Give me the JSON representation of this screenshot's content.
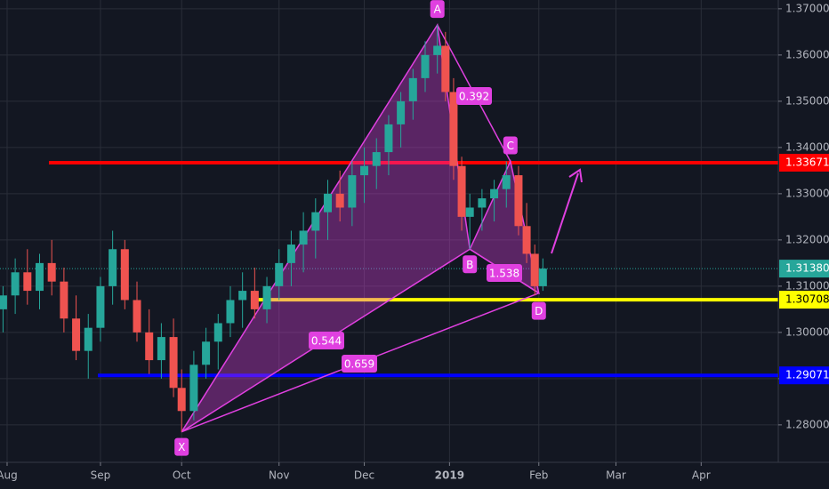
{
  "chart_data": {
    "type": "candlestick",
    "xlim": [
      -1.75,
      190
    ],
    "ylim": [
      1.2719,
      1.3719
    ],
    "xticks": [
      {
        "value": 0,
        "label": "Aug"
      },
      {
        "value": 23,
        "label": "Sep"
      },
      {
        "value": 43,
        "label": "Oct"
      },
      {
        "value": 67,
        "label": "Nov"
      },
      {
        "value": 88,
        "label": "Dec"
      },
      {
        "value": 109,
        "label": "2019"
      },
      {
        "value": 131,
        "label": "Feb"
      },
      {
        "value": 150,
        "label": "Mar"
      },
      {
        "value": 171,
        "label": "Apr"
      }
    ],
    "yticks": [
      {
        "value": 1.28,
        "label": "1.28000"
      },
      {
        "value": 1.29,
        "label": "1.29000"
      },
      {
        "value": 1.3,
        "label": "1.30000"
      },
      {
        "value": 1.31,
        "label": "1.31000"
      },
      {
        "value": 1.32,
        "label": "1.32000"
      },
      {
        "value": 1.33,
        "label": "1.33000"
      },
      {
        "value": 1.34,
        "label": "1.34000"
      },
      {
        "value": 1.35,
        "label": "1.35000"
      },
      {
        "value": 1.36,
        "label": "1.36000"
      },
      {
        "value": 1.37,
        "label": "1.37000"
      }
    ],
    "grid": true,
    "up_color": "#26a69a",
    "down_color": "#ef5350",
    "x": [
      -1,
      2,
      5,
      8,
      11,
      14,
      17,
      20,
      23,
      26,
      29,
      32,
      35,
      38,
      41,
      43,
      46,
      49,
      52,
      55,
      58,
      61,
      64,
      67,
      70,
      73,
      76,
      79,
      82,
      85,
      88,
      91,
      94,
      97,
      100,
      103,
      106,
      108,
      110,
      112,
      114,
      117,
      120,
      123,
      126,
      128,
      130,
      132
    ],
    "open": [
      1.305,
      1.308,
      1.313,
      1.309,
      1.315,
      1.311,
      1.303,
      1.296,
      1.301,
      1.31,
      1.318,
      1.307,
      1.3,
      1.294,
      1.299,
      1.288,
      1.283,
      1.293,
      1.298,
      1.302,
      1.307,
      1.309,
      1.305,
      1.31,
      1.315,
      1.319,
      1.322,
      1.326,
      1.33,
      1.327,
      1.334,
      1.336,
      1.339,
      1.345,
      1.35,
      1.355,
      1.36,
      1.362,
      1.352,
      1.336,
      1.325,
      1.327,
      1.329,
      1.331,
      1.334,
      1.323,
      1.317,
      1.31
    ],
    "high": [
      1.31,
      1.316,
      1.318,
      1.317,
      1.32,
      1.314,
      1.308,
      1.304,
      1.312,
      1.322,
      1.32,
      1.311,
      1.305,
      1.302,
      1.303,
      1.292,
      1.296,
      1.301,
      1.304,
      1.31,
      1.313,
      1.314,
      1.312,
      1.318,
      1.322,
      1.326,
      1.329,
      1.333,
      1.335,
      1.337,
      1.34,
      1.342,
      1.347,
      1.352,
      1.357,
      1.363,
      1.3665,
      1.365,
      1.355,
      1.338,
      1.33,
      1.331,
      1.333,
      1.337,
      1.336,
      1.328,
      1.319,
      1.316
    ],
    "low": [
      1.3,
      1.304,
      1.306,
      1.305,
      1.308,
      1.3,
      1.294,
      1.29,
      1.298,
      1.306,
      1.305,
      1.298,
      1.291,
      1.29,
      1.286,
      1.2785,
      1.281,
      1.29,
      1.292,
      1.299,
      1.301,
      1.303,
      1.302,
      1.307,
      1.31,
      1.313,
      1.316,
      1.32,
      1.324,
      1.323,
      1.328,
      1.331,
      1.334,
      1.34,
      1.346,
      1.352,
      1.356,
      1.35,
      1.333,
      1.322,
      1.318,
      1.322,
      1.324,
      1.327,
      1.321,
      1.315,
      1.308,
      1.309
    ],
    "close": [
      1.308,
      1.313,
      1.309,
      1.315,
      1.311,
      1.303,
      1.296,
      1.301,
      1.31,
      1.318,
      1.307,
      1.3,
      1.294,
      1.299,
      1.288,
      1.283,
      1.293,
      1.298,
      1.302,
      1.307,
      1.309,
      1.305,
      1.31,
      1.315,
      1.319,
      1.322,
      1.326,
      1.33,
      1.327,
      1.334,
      1.336,
      1.339,
      1.345,
      1.35,
      1.355,
      1.36,
      1.362,
      1.352,
      1.336,
      1.325,
      1.327,
      1.329,
      1.331,
      1.334,
      1.323,
      1.317,
      1.31,
      1.3138
    ],
    "current_price": {
      "value": 1.3138,
      "label": "1.31380",
      "color": "#26a69a"
    },
    "levels": [
      {
        "value": 1.33671,
        "color": "#ff0000"
      },
      {
        "value": 1.30708,
        "color": "#ffff00"
      },
      {
        "value": 1.29071,
        "color": "#0000ff"
      }
    ],
    "pattern": {
      "color": "#e040e0",
      "points": [
        {
          "label": "X",
          "x": 43,
          "price": 1.2785
        },
        {
          "label": "A",
          "x": 106,
          "price": 1.3665
        },
        {
          "label": "B",
          "x": 114,
          "price": 1.318
        },
        {
          "label": "C",
          "x": 124,
          "price": 1.337
        },
        {
          "label": "D",
          "x": 131,
          "price": 1.3085
        }
      ],
      "ratios": [
        0.392,
        0.544,
        0.659,
        1.538
      ]
    }
  }
}
